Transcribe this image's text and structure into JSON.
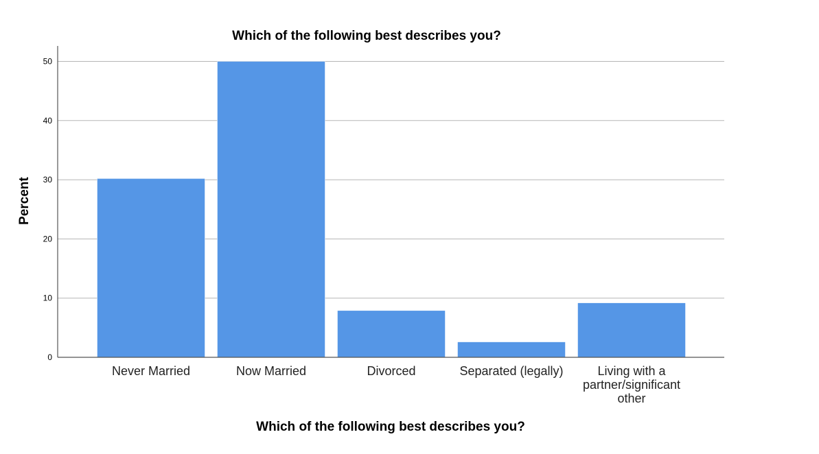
{
  "chart_data": {
    "type": "bar",
    "title": "Which of the following best describes you?",
    "xlabel": "Which of the following best describes you?",
    "ylabel": "Percent",
    "categories": [
      "Never Married",
      "Now Married",
      "Divorced",
      "Separated (legally)",
      "Living with a partner/significant other"
    ],
    "category_lines": [
      [
        "Never Married"
      ],
      [
        "Now Married"
      ],
      [
        "Divorced"
      ],
      [
        "Separated (legally)"
      ],
      [
        "Living with a",
        "partner/significant",
        "other"
      ]
    ],
    "values": [
      30.2,
      50.0,
      7.9,
      2.6,
      9.2
    ],
    "ylim": [
      0,
      52
    ],
    "yticks": [
      0,
      10,
      20,
      30,
      40,
      50
    ],
    "grid": true,
    "legend": "none",
    "bar_color": "#5596e6"
  }
}
